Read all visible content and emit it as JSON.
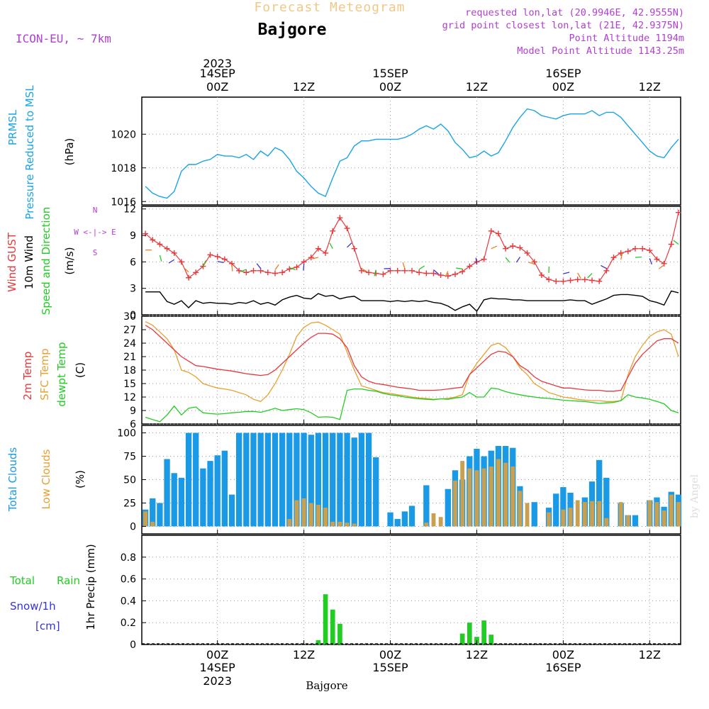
{
  "header": {
    "title": "Forecast Meteogram",
    "location": "Bajgore",
    "model": "ICON-EU, ~ 7km",
    "requested": "requested lon,lat (20.9946E, 42.9555N)",
    "gridpoint": "grid point closest lon,lat (21E, 42.9375N)",
    "point_alt": "Point Altitude 1194m",
    "model_alt": "Model Point Altitude 1143.25m",
    "footer_location": "Bajgore",
    "credit": "by Angel"
  },
  "time_axis": {
    "top_labels": [
      {
        "l1": "2023",
        "l2": "14SEP",
        "l3": "00Z",
        "h": 0
      },
      {
        "l1": "",
        "l2": "",
        "l3": "12Z",
        "h": 12
      },
      {
        "l1": "",
        "l2": "15SEP",
        "l3": "00Z",
        "h": 24
      },
      {
        "l1": "",
        "l2": "",
        "l3": "12Z",
        "h": 36
      },
      {
        "l1": "",
        "l2": "16SEP",
        "l3": "00Z",
        "h": 48
      },
      {
        "l1": "",
        "l2": "",
        "l3": "12Z",
        "h": 60
      }
    ],
    "bottom_labels": [
      {
        "l1": "00Z",
        "l2": "14SEP",
        "l3": "2023",
        "h": 0
      },
      {
        "l1": "12Z",
        "l2": "",
        "l3": "",
        "h": 12
      },
      {
        "l1": "00Z",
        "l2": "15SEP",
        "l3": "",
        "h": 24
      },
      {
        "l1": "12Z",
        "l2": "",
        "l3": "",
        "h": 36
      },
      {
        "l1": "00Z",
        "l2": "16SEP",
        "l3": "",
        "h": 48
      },
      {
        "l1": "12Z",
        "l2": "",
        "l3": "",
        "h": 60
      }
    ]
  },
  "panels": {
    "pressure": {
      "label1": "PRMSL",
      "label2": "Pressure Reduced to MSL",
      "unit": "(hPa)"
    },
    "wind": {
      "label1": "Wind GUST",
      "label2": "10m Wind",
      "label3": "Speed and Direction",
      "unit": "(m/s)",
      "compass": "W <-|-> E",
      "compass_n": "N",
      "compass_s": "S"
    },
    "temp": {
      "label1": "2m Temp",
      "label2": "SFC Temp",
      "label3": "dewpt Temp",
      "unit": "(C)"
    },
    "clouds": {
      "label1": "Total Clouds",
      "label2": "Low Clouds",
      "unit": "(%)"
    },
    "precip": {
      "label1": "Total",
      "label1b": "Rain",
      "label2": "Snow/1h",
      "label3": "[cm]",
      "unit": "1hr Precip (mm)"
    }
  },
  "colors": {
    "pressure": "#1aa3e6",
    "gust": "#e8383c",
    "wind": "#000000",
    "temp2m": "#e8383c",
    "sfc": "#e8a030",
    "dewpt": "#22cc22",
    "total_cloud": "#1a9ae6",
    "low_cloud": "#c8a050",
    "rain": "#22cc22",
    "snow": "#3333dd",
    "header_title": "#f0c888",
    "header_purple": "#b040d0"
  },
  "chart_data": [
    {
      "type": "line",
      "title": "PRMSL Pressure Reduced to MSL",
      "ylabel": "(hPa)",
      "ylim": [
        1015.8,
        1022.2
      ],
      "yticks": [
        1016,
        1018,
        1020
      ],
      "x_hours": [
        -10,
        -9,
        -8,
        -7,
        -6,
        -5,
        -4,
        -3,
        -2,
        -1,
        0,
        1,
        2,
        3,
        4,
        5,
        6,
        7,
        8,
        9,
        10,
        11,
        12,
        13,
        14,
        15,
        16,
        17,
        18,
        19,
        20,
        21,
        22,
        23,
        24,
        25,
        26,
        27,
        28,
        29,
        30,
        31,
        32,
        33,
        34,
        35,
        36,
        37,
        38,
        39,
        40,
        41,
        42,
        43,
        44,
        45,
        46,
        47,
        48,
        49,
        50,
        51,
        52,
        53,
        54,
        55,
        56,
        57,
        58,
        59,
        60,
        61,
        62,
        63,
        64
      ],
      "series": [
        {
          "values": [
            1016.9,
            1016.5,
            1016.3,
            1016.2,
            1016.6,
            1017.8,
            1018.2,
            1018.2,
            1018.4,
            1018.5,
            1018.8,
            1018.7,
            1018.7,
            1018.6,
            1018.8,
            1018.5,
            1019.0,
            1018.7,
            1019.2,
            1019.0,
            1018.5,
            1017.8,
            1017.4,
            1016.9,
            1016.5,
            1016.3,
            1017.4,
            1018.4,
            1018.6,
            1019.3,
            1019.6,
            1019.6,
            1019.7,
            1019.7,
            1019.7,
            1019.7,
            1019.8,
            1020.0,
            1020.3,
            1020.5,
            1020.3,
            1020.6,
            1020.2,
            1019.5,
            1019.1,
            1018.6,
            1018.7,
            1019.0,
            1018.7,
            1018.9,
            1019.6,
            1020.4,
            1021.0,
            1021.5,
            1021.4,
            1021.1,
            1021.0,
            1020.9,
            1021.1,
            1021.2,
            1021.2,
            1021.2,
            1021.4,
            1021.1,
            1021.3,
            1021.3,
            1021.0,
            1020.5,
            1020.0,
            1019.5,
            1019.0,
            1018.7,
            1018.6,
            1019.2,
            1019.7
          ]
        }
      ]
    },
    {
      "type": "line",
      "title": "Wind GUST / 10m Wind Speed and Direction",
      "ylabel": "(m/s)",
      "ylim": [
        0,
        12.3
      ],
      "yticks": [
        0,
        3,
        6,
        9,
        12
      ],
      "x_hours": [
        -10,
        -9,
        -8,
        -7,
        -6,
        -5,
        -4,
        -3,
        -2,
        -1,
        0,
        1,
        2,
        3,
        4,
        5,
        6,
        7,
        8,
        9,
        10,
        11,
        12,
        13,
        14,
        15,
        16,
        17,
        18,
        19,
        20,
        21,
        22,
        23,
        24,
        25,
        26,
        27,
        28,
        29,
        30,
        31,
        32,
        33,
        34,
        35,
        36,
        37,
        38,
        39,
        40,
        41,
        42,
        43,
        44,
        45,
        46,
        47,
        48,
        49,
        50,
        51,
        52,
        53,
        54,
        55,
        56,
        57,
        58,
        59,
        60,
        61,
        62,
        63,
        64
      ],
      "series": [
        {
          "name": "Wind GUST",
          "values": [
            9.2,
            8.5,
            8.0,
            7.5,
            7.0,
            6.0,
            4.2,
            4.8,
            5.5,
            6.8,
            6.6,
            6.3,
            5.8,
            5.0,
            4.8,
            5.0,
            5.0,
            4.8,
            4.7,
            4.8,
            5.2,
            5.4,
            6.0,
            6.5,
            7.5,
            7.0,
            9.5,
            11.0,
            9.8,
            7.5,
            5.0,
            4.8,
            4.7,
            4.6,
            5.0,
            5.0,
            5.0,
            5.0,
            4.8,
            4.7,
            4.7,
            4.5,
            4.4,
            4.6,
            4.9,
            5.5,
            6.0,
            6.3,
            9.5,
            9.2,
            7.5,
            7.8,
            7.6,
            7.0,
            6.0,
            4.5,
            4.0,
            3.8,
            3.8,
            3.9,
            4.0,
            4.0,
            3.9,
            3.8,
            5.0,
            6.5,
            7.0,
            7.2,
            7.5,
            7.5,
            7.3,
            6.3,
            5.8,
            8.0,
            11.6
          ]
        },
        {
          "name": "10m Wind",
          "values": [
            2.6,
            2.6,
            2.6,
            1.5,
            1.2,
            1.6,
            0.8,
            1.6,
            1.3,
            1.4,
            1.3,
            1.3,
            1.2,
            1.4,
            1.3,
            1.6,
            1.2,
            1.4,
            1.1,
            1.7,
            2.0,
            2.2,
            1.9,
            1.8,
            2.4,
            2.1,
            2.2,
            1.8,
            2.0,
            2.1,
            1.6,
            1.6,
            1.6,
            1.6,
            1.5,
            1.6,
            1.5,
            1.6,
            1.5,
            1.6,
            1.4,
            1.3,
            1.0,
            0.5,
            0.9,
            1.2,
            0.4,
            1.7,
            1.9,
            1.8,
            1.8,
            1.7,
            1.7,
            1.6,
            1.6,
            1.6,
            1.6,
            1.6,
            1.6,
            1.7,
            1.6,
            1.6,
            1.2,
            1.5,
            1.8,
            2.2,
            2.3,
            2.3,
            2.2,
            2.1,
            1.6,
            1.4,
            1.1,
            2.7,
            2.5
          ]
        }
      ]
    },
    {
      "type": "line",
      "title": "2m Temp / SFC Temp / dewpt Temp",
      "ylabel": "(C)",
      "ylim": [
        6,
        30
      ],
      "yticks": [
        6,
        9,
        12,
        15,
        18,
        21,
        24,
        27,
        30
      ],
      "x_hours": [
        -10,
        -9,
        -8,
        -7,
        -6,
        -5,
        -4,
        -3,
        -2,
        -1,
        0,
        1,
        2,
        3,
        4,
        5,
        6,
        7,
        8,
        9,
        10,
        11,
        12,
        13,
        14,
        15,
        16,
        17,
        18,
        19,
        20,
        21,
        22,
        23,
        24,
        25,
        26,
        27,
        28,
        29,
        30,
        31,
        32,
        33,
        34,
        35,
        36,
        37,
        38,
        39,
        40,
        41,
        42,
        43,
        44,
        45,
        46,
        47,
        48,
        49,
        50,
        51,
        52,
        53,
        54,
        55,
        56,
        57,
        58,
        59,
        60,
        61,
        62,
        63,
        64
      ],
      "series": [
        {
          "name": "2m Temp",
          "values": [
            28.0,
            27.0,
            25.5,
            24.0,
            22.5,
            21.0,
            20.0,
            19.0,
            18.8,
            18.5,
            18.2,
            18.0,
            17.8,
            17.5,
            17.2,
            17.0,
            16.8,
            17.0,
            18.0,
            19.5,
            21.0,
            22.5,
            24.0,
            25.3,
            26.2,
            26.2,
            26.0,
            25.0,
            23.0,
            19.0,
            16.5,
            15.5,
            15.0,
            14.8,
            14.5,
            14.2,
            14.0,
            13.8,
            13.5,
            13.5,
            13.5,
            13.6,
            13.8,
            14.0,
            14.2,
            17.0,
            18.5,
            20.0,
            21.5,
            22.2,
            22.0,
            21.0,
            19.0,
            18.0,
            16.5,
            15.5,
            15.0,
            14.5,
            14.0,
            14.0,
            13.8,
            13.6,
            13.5,
            13.5,
            13.3,
            13.3,
            13.5,
            16.5,
            19.5,
            21.5,
            23.0,
            24.5,
            25.0,
            25.0,
            24.0
          ]
        },
        {
          "name": "SFC Temp",
          "values": [
            28.8,
            28.0,
            26.5,
            25.0,
            22.5,
            18.0,
            17.5,
            16.5,
            15.0,
            14.5,
            14.0,
            13.8,
            13.5,
            13.0,
            12.5,
            11.5,
            11.0,
            12.5,
            15.0,
            18.0,
            21.5,
            25.5,
            27.5,
            28.5,
            28.7,
            28.0,
            27.0,
            26.0,
            22.0,
            18.0,
            14.5,
            14.0,
            13.5,
            13.0,
            12.8,
            12.5,
            12.3,
            12.0,
            11.8,
            11.7,
            11.5,
            11.6,
            11.7,
            12.0,
            12.5,
            17.0,
            19.5,
            21.5,
            23.5,
            24.0,
            23.0,
            21.0,
            18.5,
            17.0,
            15.0,
            14.0,
            13.0,
            12.5,
            12.0,
            11.8,
            11.5,
            11.3,
            11.2,
            11.2,
            11.0,
            11.0,
            11.2,
            17.0,
            21.0,
            23.5,
            25.5,
            26.5,
            27.0,
            26.0,
            21.0
          ]
        },
        {
          "name": "dewpt Temp",
          "values": [
            7.5,
            7.0,
            6.5,
            8.0,
            10.0,
            8.0,
            9.5,
            9.8,
            8.5,
            8.3,
            8.2,
            8.3,
            8.5,
            8.6,
            8.8,
            8.8,
            8.6,
            9.0,
            9.5,
            9.0,
            9.2,
            9.4,
            9.2,
            8.5,
            7.5,
            7.6,
            7.5,
            7.0,
            13.5,
            13.8,
            13.8,
            13.5,
            13.3,
            12.8,
            12.5,
            12.3,
            12.0,
            11.8,
            11.6,
            11.5,
            11.4,
            11.6,
            11.5,
            11.8,
            12.0,
            13.0,
            12.0,
            12.0,
            14.0,
            13.8,
            13.2,
            12.8,
            12.5,
            12.2,
            12.0,
            11.8,
            11.7,
            11.5,
            11.3,
            11.2,
            11.1,
            11.0,
            10.8,
            10.6,
            10.7,
            10.8,
            11.2,
            12.5,
            12.0,
            11.8,
            11.5,
            11.0,
            10.5,
            9.0,
            8.5
          ]
        }
      ]
    },
    {
      "type": "bar",
      "title": "Total Clouds / Low Clouds",
      "ylabel": "(%)",
      "ylim": [
        -8,
        108
      ],
      "yticks": [
        0,
        25,
        50,
        75,
        100
      ],
      "x_hours": [
        -10,
        -9,
        -8,
        -7,
        -6,
        -5,
        -4,
        -3,
        -2,
        -1,
        0,
        1,
        2,
        3,
        4,
        5,
        6,
        7,
        8,
        9,
        10,
        11,
        12,
        13,
        14,
        15,
        16,
        17,
        18,
        19,
        20,
        21,
        22,
        23,
        24,
        25,
        26,
        27,
        28,
        29,
        30,
        31,
        32,
        33,
        34,
        35,
        36,
        37,
        38,
        39,
        40,
        41,
        42,
        43,
        44,
        45,
        46,
        47,
        48,
        49,
        50,
        51,
        52,
        53,
        54,
        55,
        56,
        57,
        58,
        59,
        60,
        61,
        62,
        63,
        64
      ],
      "series": [
        {
          "name": "Total Clouds",
          "values": [
            18,
            30,
            25,
            72,
            57,
            52,
            100,
            100,
            62,
            70,
            76,
            81,
            34,
            100,
            100,
            100,
            100,
            100,
            100,
            100,
            100,
            100,
            100,
            98,
            100,
            100,
            100,
            100,
            100,
            95,
            100,
            100,
            74,
            0,
            15,
            8,
            16,
            22,
            0,
            44,
            0,
            0,
            40,
            60,
            50,
            75,
            83,
            75,
            81,
            86,
            86,
            84,
            43,
            0,
            26,
            0,
            20,
            35,
            42,
            36,
            0,
            31,
            48,
            71,
            52,
            0,
            25,
            12,
            12,
            0,
            28,
            31,
            21,
            37,
            34
          ]
        },
        {
          "name": "Low Clouds",
          "values": [
            16,
            5,
            0,
            0,
            0,
            0,
            0,
            0,
            0,
            0,
            0,
            0,
            0,
            0,
            0,
            0,
            0,
            0,
            0,
            0,
            8,
            28,
            30,
            25,
            23,
            20,
            5,
            5,
            4,
            3,
            0,
            0,
            0,
            0,
            0,
            0,
            0,
            0,
            0,
            4,
            14,
            10,
            0,
            49,
            70,
            62,
            60,
            62,
            64,
            72,
            68,
            64,
            38,
            25,
            0,
            0,
            15,
            0,
            18,
            20,
            28,
            26,
            27,
            27,
            9,
            0,
            26,
            12,
            0,
            0,
            28,
            26,
            17,
            34,
            26
          ]
        }
      ]
    },
    {
      "type": "bar",
      "title": "1hr Precip",
      "ylabel": "1hr Precip (mm)",
      "ylim": [
        0,
        1.0
      ],
      "yticks": [
        0,
        0.2,
        0.4,
        0.6,
        0.8
      ],
      "x_hours": [
        14,
        15,
        16,
        17,
        34,
        35,
        36,
        37,
        38,
        39
      ],
      "series": [
        {
          "name": "Total Rain",
          "values": [
            0.04,
            0.46,
            0.32,
            0.19,
            0.1,
            0.2,
            0.07,
            0.22,
            0.09,
            0.0
          ]
        }
      ]
    }
  ]
}
